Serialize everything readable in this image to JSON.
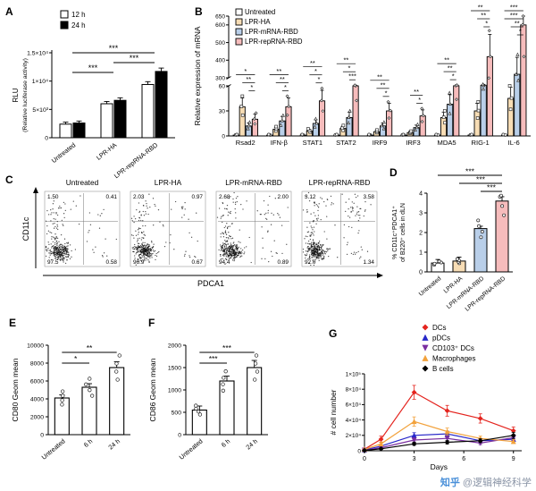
{
  "watermark": {
    "brand": "知乎",
    "handle": "@逻辑神经科学",
    "brand_color": "#4a90d9",
    "handle_color": "#8a94a6"
  },
  "panels": {
    "A": {
      "label": "A"
    },
    "B": {
      "label": "B"
    },
    "C": {
      "label": "C"
    },
    "D": {
      "label": "D"
    },
    "E": {
      "label": "E"
    },
    "F": {
      "label": "F"
    },
    "G": {
      "label": "G"
    }
  },
  "chart_data": [
    {
      "id": "A",
      "type": "bar",
      "ylabel_lines": [
        "RLU",
        "(Relative luciferase activity)"
      ],
      "categories": [
        "Untreated",
        "LPR-HA",
        "LPR-repRNA-RBD"
      ],
      "series": [
        {
          "name": "12 h",
          "color": "#ffffff",
          "values": [
            2400,
            6000,
            9400
          ],
          "errors": [
            350,
            400,
            500
          ]
        },
        {
          "name": "24 h",
          "color": "#000000",
          "values": [
            2600,
            6600,
            11700
          ],
          "errors": [
            350,
            450,
            600
          ]
        }
      ],
      "ylim": [
        0,
        15000
      ],
      "yticks": [
        0,
        5000,
        10000,
        15000
      ],
      "ytick_labels": [
        "0",
        "5×10³",
        "1×10⁴",
        "1.5×10⁴"
      ],
      "significance": [
        {
          "a": 0,
          "b": 1,
          "label": "***"
        },
        {
          "a": 1,
          "b": 2,
          "label": "***"
        },
        {
          "a": 0,
          "b": 2,
          "label": "***"
        }
      ],
      "legend_position": "top-left",
      "grid": false
    },
    {
      "id": "B",
      "type": "bar",
      "ylabel": "Relative expression of mRNA",
      "categories": [
        "Rsad2",
        "IFN-β",
        "STAT1",
        "STAT2",
        "IRF9",
        "IRF3",
        "MDA5",
        "RIG-1",
        "IL-6"
      ],
      "series": [
        {
          "name": "Untreated",
          "color": "#ffffff",
          "values": [
            1,
            1,
            1,
            1,
            1,
            1,
            1,
            1,
            1
          ]
        },
        {
          "name": "LPR-HA",
          "color": "#f7ddb5",
          "values": [
            35,
            8,
            6,
            9,
            5,
            4,
            22,
            30,
            45
          ]
        },
        {
          "name": "LPR-mRNA-RBD",
          "color": "#b9cfe9",
          "values": [
            12,
            18,
            15,
            22,
            12,
            10,
            38,
            80,
            320
          ]
        },
        {
          "name": "LPR-repRNA-RBD",
          "color": "#f6bcbc",
          "values": [
            20,
            35,
            42,
            60,
            30,
            24,
            62,
            420,
            600
          ]
        }
      ],
      "axis_break": {
        "lower": [
          0,
          60
        ],
        "upper": [
          300,
          650
        ]
      },
      "yticks_lower": [
        0,
        30,
        60
      ],
      "yticks_upper": [
        300,
        400,
        500,
        600,
        650
      ],
      "error_frac": 0.3,
      "sig_bottom_to_top": [
        [
          "*",
          "**",
          "*"
        ],
        [
          "*",
          "**",
          "**"
        ],
        [
          "*",
          "*",
          "**"
        ],
        [
          "***",
          "*",
          "**"
        ],
        [
          "*",
          "**",
          "**"
        ],
        [
          "*",
          "**"
        ],
        [
          "*",
          "**",
          "**"
        ],
        [
          "*",
          "**",
          "**"
        ],
        [
          "*",
          "**",
          "***",
          "***"
        ]
      ],
      "legend_position": "top-left"
    },
    {
      "id": "C",
      "type": "scatter",
      "subtype": "flow-cytometry",
      "xlabel": "PDCA1",
      "ylabel": "CD11c",
      "plots": [
        {
          "title": "Untreated",
          "ul": "1.50",
          "ur": "0.41",
          "ll": "97.5",
          "lr": "0.58"
        },
        {
          "title": "LPR-HA",
          "ul": "2.03",
          "ur": "0.97",
          "ll": "96.9",
          "lr": "0.67"
        },
        {
          "title": "LPR-mRNA-RBD",
          "ul": "2.68",
          "ur": "2.00",
          "ll": "94.4",
          "lr": "0.89"
        },
        {
          "title": "LPR-repRNA-RBD",
          "ul": "3.12",
          "ur": "3.58",
          "ll": "92.0",
          "lr": "1.34"
        }
      ]
    },
    {
      "id": "D",
      "type": "bar",
      "ylabel_lines": [
        "% CD11c⁺PDCA1⁺",
        "of B220⁺ cells in dLN"
      ],
      "categories": [
        "Untreated",
        "LPR-HA",
        "LPR-mRNA-RBD",
        "LPR-repRNA-RBD"
      ],
      "values": [
        0.45,
        0.55,
        2.2,
        3.6
      ],
      "errors": [
        0.18,
        0.2,
        0.12,
        0.22
      ],
      "bar_colors": [
        "#ffffff",
        "#f7ddb5",
        "#b9cfe9",
        "#f6bcbc"
      ],
      "ylim": [
        0,
        4
      ],
      "yticks": [
        0,
        1,
        2,
        3,
        4
      ],
      "significance": [
        {
          "a": 2,
          "b": 3,
          "label": "***"
        },
        {
          "a": 1,
          "b": 3,
          "label": "***"
        },
        {
          "a": 0,
          "b": 3,
          "label": "***"
        }
      ]
    },
    {
      "id": "E",
      "type": "bar",
      "ylabel": "CD80 Geom mean",
      "categories": [
        "Untreated",
        "6 h",
        "24 h"
      ],
      "values": [
        4100,
        5300,
        7500
      ],
      "errors": [
        350,
        400,
        650
      ],
      "ylim": [
        0,
        10000
      ],
      "yticks": [
        0,
        2000,
        4000,
        6000,
        8000,
        10000
      ],
      "significance": [
        {
          "a": 0,
          "b": 1,
          "label": "*"
        },
        {
          "a": 0,
          "b": 2,
          "label": "**"
        }
      ]
    },
    {
      "id": "F",
      "type": "bar",
      "ylabel": "CD86 Geom mean",
      "categories": [
        "Untreated",
        "6 h",
        "24 h"
      ],
      "values": [
        550,
        1200,
        1500
      ],
      "errors": [
        90,
        110,
        160
      ],
      "ylim": [
        0,
        2000
      ],
      "yticks": [
        0,
        500,
        1000,
        1500,
        2000
      ],
      "significance": [
        {
          "a": 0,
          "b": 1,
          "label": "***"
        },
        {
          "a": 0,
          "b": 2,
          "label": "***"
        }
      ]
    },
    {
      "id": "G",
      "type": "line",
      "xlabel": "Days",
      "ylabel": "# cell number",
      "x": [
        0,
        1,
        3,
        5,
        7,
        9
      ],
      "xticks": [
        0,
        3,
        6,
        9
      ],
      "xlim": [
        0,
        9.5
      ],
      "ylim": [
        0,
        100000
      ],
      "yticks": [
        0,
        20000,
        40000,
        60000,
        80000,
        100000
      ],
      "ytick_labels": [
        "0",
        "2×10⁴",
        "4×10⁴",
        "6×10⁴",
        "8×10⁴",
        "1×10⁵"
      ],
      "legend_position": "top",
      "series": [
        {
          "name": "DCs",
          "color": "#e4241e",
          "marker": "diamond",
          "values": [
            2000,
            15000,
            76000,
            52000,
            42000,
            26000
          ],
          "errors": [
            800,
            4000,
            9000,
            7000,
            6000,
            5000
          ]
        },
        {
          "name": "pDCs",
          "color": "#2727c9",
          "marker": "triangle",
          "values": [
            1000,
            6000,
            20000,
            22000,
            13000,
            15000
          ],
          "errors": [
            500,
            1500,
            3500,
            3500,
            2500,
            3000
          ]
        },
        {
          "name": "CD103⁺ DCs",
          "color": "#7a2fa0",
          "marker": "triangle-down",
          "values": [
            800,
            4000,
            14000,
            16000,
            10000,
            17000
          ],
          "errors": [
            400,
            1200,
            2500,
            3000,
            2000,
            3500
          ]
        },
        {
          "name": "Macrophages",
          "color": "#f2a23c",
          "marker": "triangle",
          "values": [
            1800,
            9000,
            38000,
            25000,
            16000,
            12000
          ],
          "errors": [
            700,
            2500,
            6000,
            4500,
            3000,
            2500
          ]
        },
        {
          "name": "B cells",
          "color": "#000000",
          "marker": "diamond",
          "values": [
            500,
            2500,
            9000,
            11000,
            13000,
            20000
          ],
          "errors": [
            300,
            900,
            2000,
            2200,
            2500,
            4000
          ]
        }
      ]
    }
  ]
}
